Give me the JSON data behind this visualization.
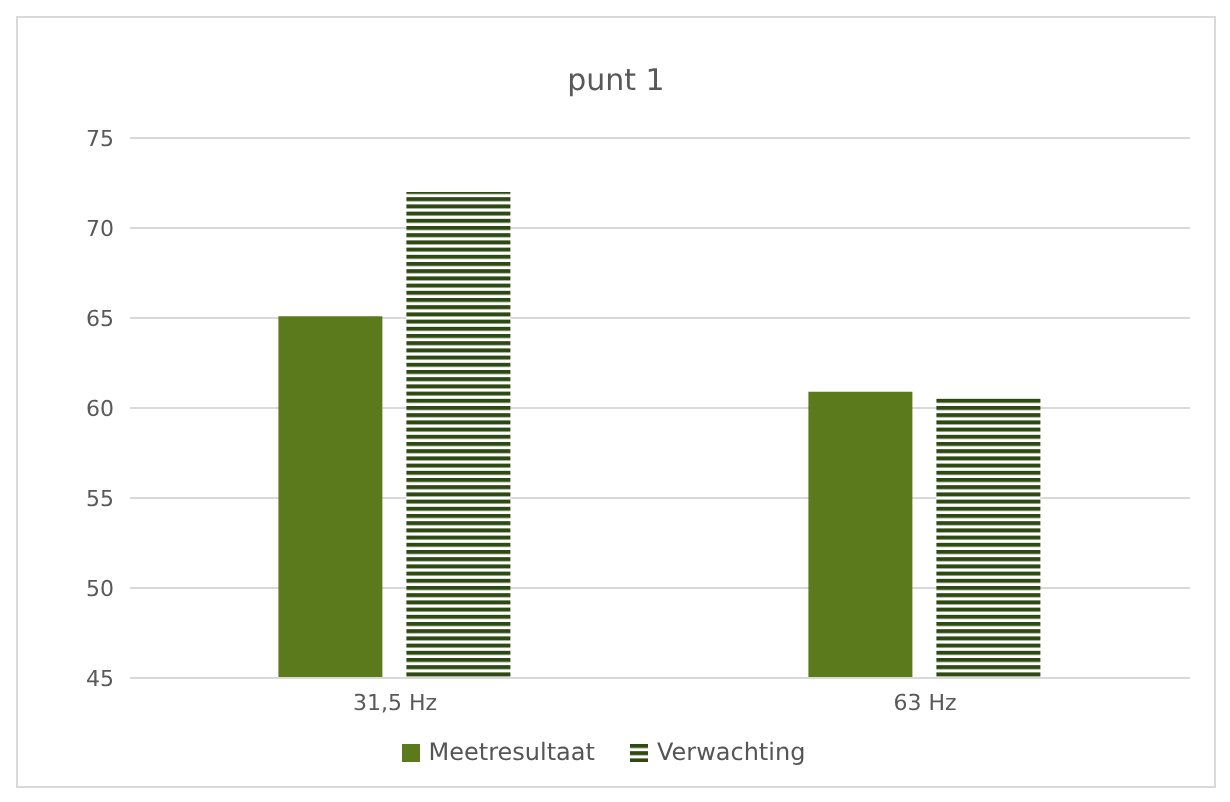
{
  "chart_data": {
    "type": "bar",
    "title": "punt 1",
    "categories": [
      "31,5 Hz",
      "63 Hz"
    ],
    "series": [
      {
        "name": "Meetresultaat",
        "color": "#5b7a1c",
        "values": [
          65.1,
          60.9
        ]
      },
      {
        "name": "Verwachting",
        "color": "#2e4a12",
        "values": [
          72.0,
          60.6
        ]
      }
    ],
    "ylim": [
      45,
      75
    ],
    "yticks": [
      45,
      50,
      55,
      60,
      65,
      70,
      75
    ],
    "grid": "y",
    "legend": "bottom"
  }
}
